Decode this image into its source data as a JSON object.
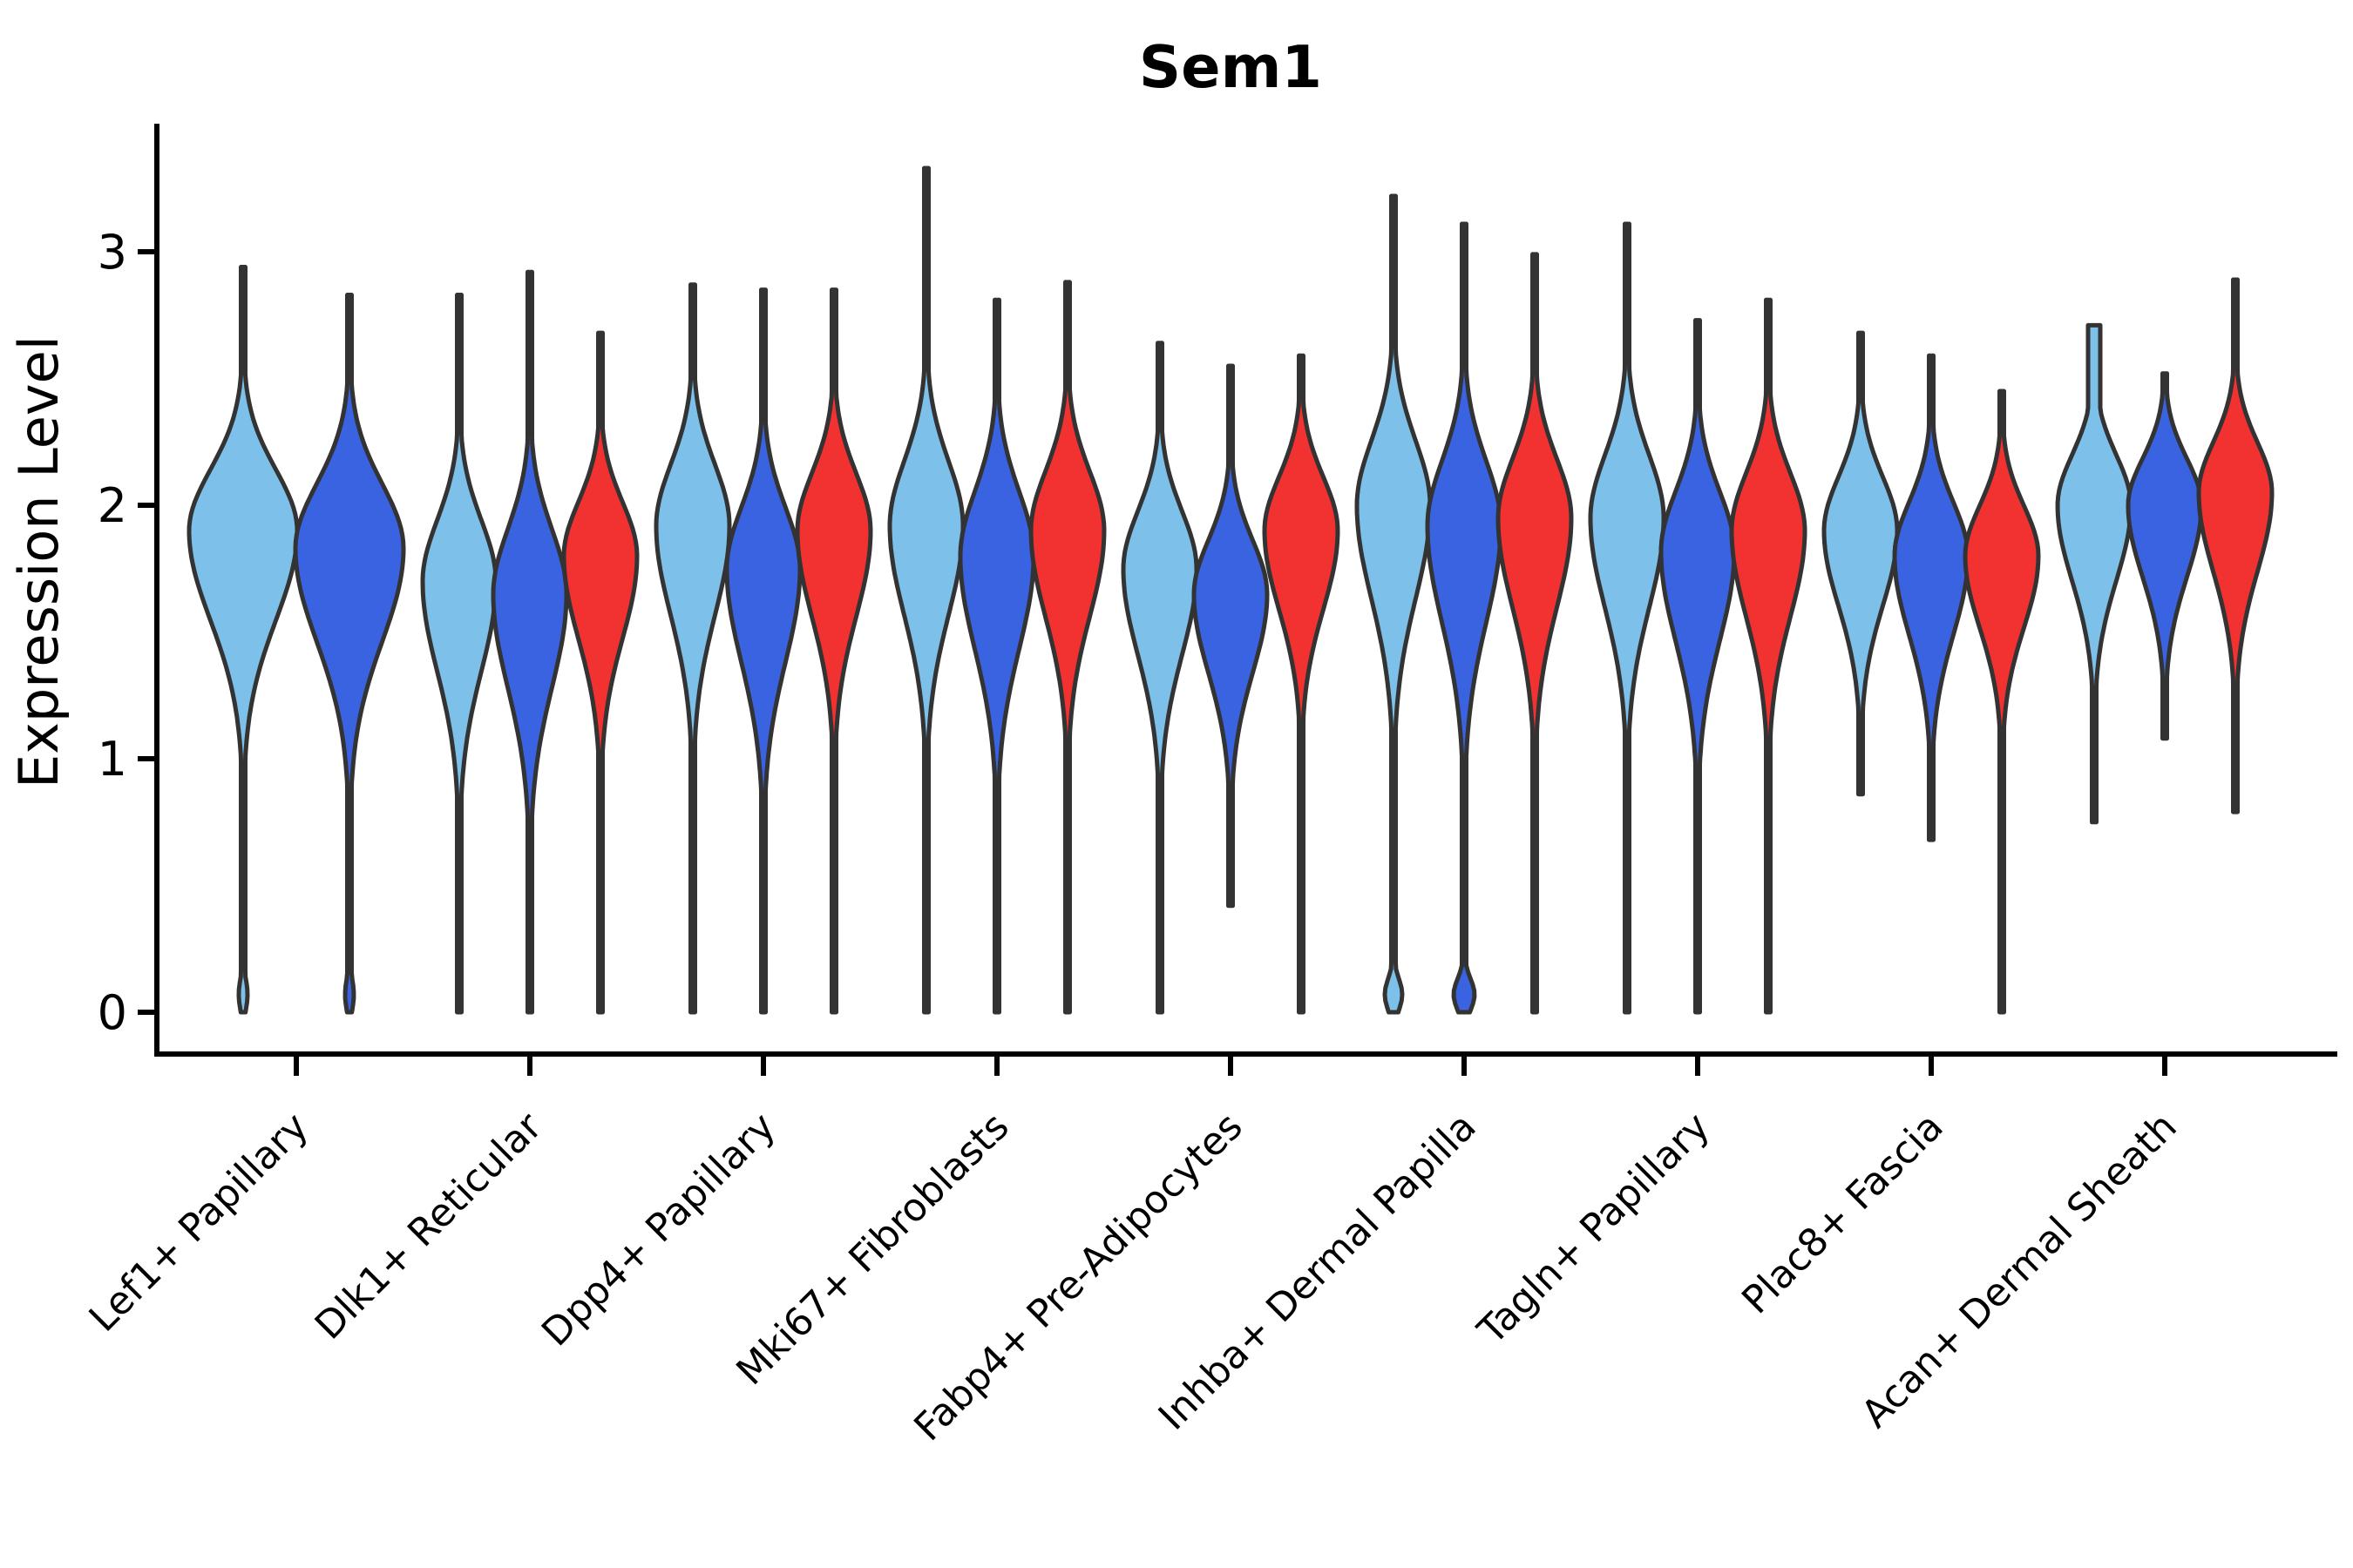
{
  "title": "Sem1",
  "y_axis": {
    "label": "Expression Level",
    "tick_labels": [
      "0",
      "1",
      "2",
      "3"
    ]
  },
  "chart_data": {
    "type": "violin",
    "title": "Sem1",
    "xlabel": "",
    "ylabel": "Expression Level",
    "ylim": [
      -0.16,
      3.5
    ],
    "yticks": [
      0,
      1,
      2,
      3
    ],
    "grid": false,
    "legend": "none",
    "outline_color": "#333333",
    "hue_colors": {
      "hue1": "#7DC1EA",
      "hue2": "#3A63E2",
      "hue3": "#F23131"
    },
    "hue_names": {
      "hue1": "light-blue",
      "hue2": "dark-blue",
      "hue3": "red"
    },
    "categories": [
      "Lef1+ Papillary",
      "Dlk1+ Reticular",
      "Dpp4+ Papillary",
      "Mki67+ Fibroblasts",
      "Fabp4+ Pre-Adipocytes",
      "Inhba+ Dermal Papilla",
      "Tagln+ Papillary",
      "Plac8+ Fascia",
      "Acan+ Dermal Sheath"
    ],
    "groups": [
      {
        "category": "Lef1+ Papillary",
        "violins": [
          {
            "hue": "hue1",
            "max": 2.94,
            "min": 0.0,
            "mode": 1.9,
            "spread_up": 0.34,
            "spread_down": 0.5,
            "zero_bump": 5
          },
          {
            "hue": "hue2",
            "max": 2.83,
            "min": 0.0,
            "mode": 1.83,
            "spread_up": 0.36,
            "spread_down": 0.52,
            "zero_bump": 5
          }
        ]
      },
      {
        "category": "Dlk1+ Reticular",
        "violins": [
          {
            "hue": "hue1",
            "max": 2.83,
            "min": 0.0,
            "mode": 1.7,
            "spread_up": 0.34,
            "spread_down": 0.5
          },
          {
            "hue": "hue2",
            "max": 2.92,
            "min": 0.0,
            "mode": 1.65,
            "spread_up": 0.36,
            "spread_down": 0.52
          },
          {
            "hue": "hue3",
            "max": 2.68,
            "min": 0.0,
            "mode": 1.8,
            "spread_up": 0.3,
            "spread_down": 0.46
          }
        ]
      },
      {
        "category": "Dpp4+ Papillary",
        "violins": [
          {
            "hue": "hue1",
            "max": 2.87,
            "min": 0.0,
            "mode": 1.92,
            "spread_up": 0.34,
            "spread_down": 0.5
          },
          {
            "hue": "hue2",
            "max": 2.85,
            "min": 0.0,
            "mode": 1.75,
            "spread_up": 0.34,
            "spread_down": 0.52
          },
          {
            "hue": "hue3",
            "max": 2.85,
            "min": 0.0,
            "mode": 1.9,
            "spread_up": 0.32,
            "spread_down": 0.48
          }
        ]
      },
      {
        "category": "Mki67+ Fibroblasts",
        "violins": [
          {
            "hue": "hue1",
            "max": 3.33,
            "min": 0.0,
            "mode": 1.92,
            "spread_up": 0.36,
            "spread_down": 0.5
          },
          {
            "hue": "hue2",
            "max": 2.81,
            "min": 0.0,
            "mode": 1.8,
            "spread_up": 0.36,
            "spread_down": 0.52
          },
          {
            "hue": "hue3",
            "max": 2.88,
            "min": 0.0,
            "mode": 1.9,
            "spread_up": 0.33,
            "spread_down": 0.48
          }
        ]
      },
      {
        "category": "Fabp4+ Pre-Adipocytes",
        "violins": [
          {
            "hue": "hue1",
            "max": 2.64,
            "min": 0.0,
            "mode": 1.75,
            "spread_up": 0.32,
            "spread_down": 0.48
          },
          {
            "hue": "hue2",
            "max": 2.55,
            "min": 0.42,
            "mode": 1.65,
            "spread_up": 0.3,
            "spread_down": 0.44
          },
          {
            "hue": "hue3",
            "max": 2.59,
            "min": 0.0,
            "mode": 1.9,
            "spread_up": 0.3,
            "spread_down": 0.44
          }
        ]
      },
      {
        "category": "Inhba+ Dermal Papilla",
        "violins": [
          {
            "hue": "hue1",
            "max": 3.22,
            "min": 0.0,
            "mode": 2.0,
            "spread_up": 0.36,
            "spread_down": 0.52,
            "zero_bump": 10
          },
          {
            "hue": "hue2",
            "max": 3.11,
            "min": 0.0,
            "mode": 1.92,
            "spread_up": 0.36,
            "spread_down": 0.54,
            "zero_bump": 12
          },
          {
            "hue": "hue3",
            "max": 2.99,
            "min": 0.0,
            "mode": 1.95,
            "spread_up": 0.33,
            "spread_down": 0.5
          }
        ]
      },
      {
        "category": "Tagln+ Papillary",
        "violins": [
          {
            "hue": "hue1",
            "max": 3.11,
            "min": 0.0,
            "mode": 1.95,
            "spread_up": 0.35,
            "spread_down": 0.5
          },
          {
            "hue": "hue2",
            "max": 2.73,
            "min": 0.0,
            "mode": 1.82,
            "spread_up": 0.33,
            "spread_down": 0.5
          },
          {
            "hue": "hue3",
            "max": 2.81,
            "min": 0.0,
            "mode": 1.9,
            "spread_up": 0.32,
            "spread_down": 0.48
          }
        ]
      },
      {
        "category": "Plac8+ Fascia",
        "violins": [
          {
            "hue": "hue1",
            "max": 2.68,
            "min": 0.86,
            "mode": 1.9,
            "spread_up": 0.3,
            "spread_down": 0.42
          },
          {
            "hue": "hue2",
            "max": 2.59,
            "min": 0.68,
            "mode": 1.8,
            "spread_up": 0.3,
            "spread_down": 0.44
          },
          {
            "hue": "hue3",
            "max": 2.45,
            "min": 0.0,
            "mode": 1.8,
            "spread_up": 0.28,
            "spread_down": 0.4
          }
        ]
      },
      {
        "category": "Acan+ Dermal Sheath",
        "violins": [
          {
            "hue": "hue1",
            "max": 2.71,
            "min": 0.75,
            "mode": 2.0,
            "spread_up": 0.28,
            "spread_down": 0.42,
            "blunt_neck": 7
          },
          {
            "hue": "hue2",
            "max": 2.52,
            "min": 1.08,
            "mode": 2.0,
            "spread_up": 0.26,
            "spread_down": 0.4
          },
          {
            "hue": "hue3",
            "max": 2.89,
            "min": 0.79,
            "mode": 2.05,
            "spread_up": 0.28,
            "spread_down": 0.44
          }
        ]
      }
    ]
  }
}
